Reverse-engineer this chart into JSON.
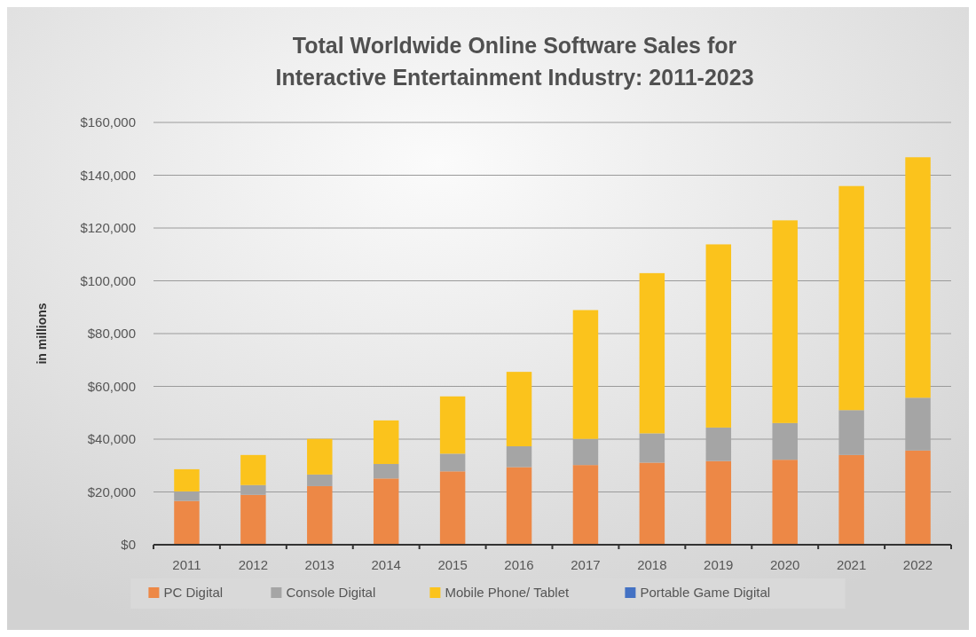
{
  "chart_data": {
    "type": "bar",
    "title": "Total Worldwide Online Software Sales for Interactive Entertainment Industry: 2011-2023",
    "ylabel": "in millions",
    "stacked": true,
    "grid": "y",
    "legend": "bottom",
    "categories": [
      "2011",
      "2012",
      "2013",
      "2014",
      "2015",
      "2016",
      "2017",
      "2018",
      "2019",
      "2020",
      "2021",
      "2022"
    ],
    "ylim": [
      0,
      160000
    ],
    "yticks": [
      {
        "value": 0,
        "label": "$0"
      },
      {
        "value": 20000,
        "label": "$20,000"
      },
      {
        "value": 40000,
        "label": "$40,000"
      },
      {
        "value": 60000,
        "label": "$60,000"
      },
      {
        "value": 80000,
        "label": "$80,000"
      },
      {
        "value": 100000,
        "label": "$100,000"
      },
      {
        "value": 120000,
        "label": "$120,000"
      },
      {
        "value": 140000,
        "label": "$140,000"
      },
      {
        "value": 160000,
        "label": "$160,000"
      }
    ],
    "series": [
      {
        "name": "PC Digital",
        "color": "#ed8846",
        "values": [
          16600,
          18900,
          22200,
          25100,
          27800,
          29400,
          30200,
          31100,
          31700,
          32200,
          34000,
          35700
        ]
      },
      {
        "name": "Console Digital",
        "color": "#a5a5a5",
        "values": [
          3600,
          3700,
          4400,
          5500,
          6700,
          7900,
          9900,
          11100,
          12700,
          13900,
          17000,
          20000
        ]
      },
      {
        "name": "Mobile Phone/ Tablet",
        "color": "#fbc31c",
        "values": [
          8400,
          11400,
          13500,
          16500,
          21700,
          28200,
          48800,
          60700,
          69400,
          76800,
          84900,
          91100
        ]
      },
      {
        "name": "Portable Game Digital",
        "color": "#4472c4",
        "values": [
          0,
          0,
          0,
          0,
          0,
          0,
          0,
          0,
          0,
          0,
          0,
          0
        ]
      }
    ]
  }
}
